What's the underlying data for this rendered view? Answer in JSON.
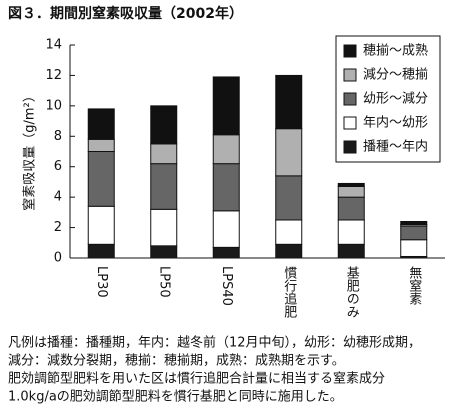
{
  "chart_data": {
    "type": "stacked_bar",
    "title": "図３．期間別窒素吸収量（2002年）",
    "ylabel": "窒素吸収量（g/m²）",
    "categories": [
      "LP30",
      "LP50",
      "LPS40",
      "慣行追肥",
      "基肥のみ",
      "無窒素"
    ],
    "series": [
      {
        "name": "播種～年内",
        "color": "#1a1a1a",
        "values": [
          0.9,
          0.8,
          0.7,
          0.9,
          0.9,
          0.1
        ]
      },
      {
        "name": "年内～幼形",
        "color": "#ffffff",
        "values": [
          2.5,
          2.4,
          2.4,
          1.6,
          1.6,
          1.1
        ]
      },
      {
        "name": "幼形～減分",
        "color": "#666666",
        "values": [
          3.6,
          3.0,
          3.1,
          2.9,
          1.5,
          0.9
        ]
      },
      {
        "name": "減分～穂揃",
        "color": "#b0b0b0",
        "values": [
          0.8,
          1.3,
          1.9,
          3.1,
          0.7,
          0.1
        ]
      },
      {
        "name": "穂揃～成熟",
        "color": "#111111",
        "values": [
          2.0,
          2.5,
          3.8,
          3.5,
          0.2,
          0.2
        ]
      }
    ],
    "ylim": [
      0,
      14
    ],
    "yticks": [
      0,
      2,
      4,
      6,
      8,
      10,
      12,
      14
    ],
    "legend": "top-right",
    "notes": [
      "凡例は播種：播種期，年内：越冬前（12月中旬），幼形：幼穂形成期，",
      "減分：減数分裂期，穂揃：穂揃期，成熟：成熟期を示す。",
      "肥効調節型肥料を用いた区は慣行追肥合計量に相当する窒素成分",
      "1.0kg/aの肥効調節型肥料を慣行基肥と同時に施用した。"
    ]
  }
}
